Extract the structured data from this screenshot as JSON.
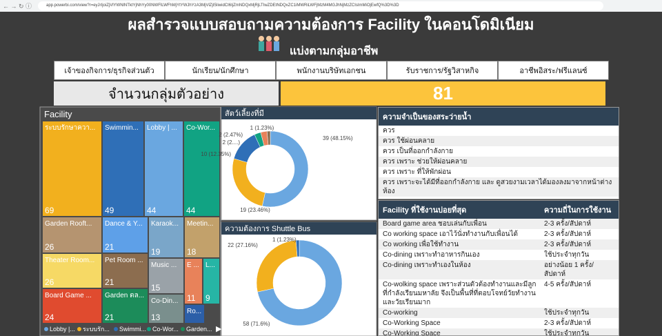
{
  "browser": {
    "url": "app.powerbi.com/view?r=eyJrIjoiZjVlYWNlNTktYjNhYy00NWFlLWFhMjYtYWJhYzA3MjVlZjI5IiwidCI6IjZmNDQxMjRjLTIwZDEtNDQxZC1iMWRiLWFjMzM4MGJhNjMzZCIsImMiOjEwfQ%3D%3D"
  },
  "header": {
    "title": "ผลสำรวจแบบสอบถามความต้องการ Facility ในคอนโดมิเนียม",
    "subtitle": "แบ่งตามกลุ่มอาชีพ"
  },
  "filters": [
    "เจ้าของกิจการ/ธุรกิจส่วนตัว",
    "นักเรียน/นักศึกษา",
    "พนักงานบริษัทเอกชน",
    "รับราชการ/รัฐวิสาหกิจ",
    "อาชีพอิสระ/ฟรีแลนซ์"
  ],
  "kpi": {
    "label": "จำนวนกลุ่มตัวอย่าง",
    "value": 81
  },
  "chart_data": [
    {
      "type": "treemap",
      "title": "Facility",
      "categories": [
        "ระบบรักษาควา...",
        "Swimmin...",
        "Lobby | ...",
        "Co-Wor...",
        "Garden Rooft...",
        "Dance & Y...",
        "Karaok...",
        "Meetin...",
        "Theater Room...",
        "Pet Room ...",
        "Music ...",
        "E ...",
        "L...",
        "Board Game ...",
        "Garden ตล...",
        "Co-Din...",
        "Ro..."
      ],
      "values": [
        69,
        49,
        44,
        44,
        26,
        21,
        19,
        18,
        26,
        21,
        15,
        11,
        9,
        24,
        21,
        13,
        null
      ],
      "colors": [
        "#f2b01e",
        "#2f6fb7",
        "#6aa7e0",
        "#11a383",
        "#b59470",
        "#5ea0e8",
        "#7aa6c9",
        "#c2a16b",
        "#f6d965",
        "#8c6d4f",
        "#9aa2a8",
        "#e8825a",
        "#26b5a5",
        "#e04b2f",
        "#1c8c5a",
        "#7a8f8d",
        "#2c5fa8"
      ],
      "legend": [
        {
          "label": "Lobby |...",
          "color": "#6aa7e0"
        },
        {
          "label": "ระบบรัก...",
          "color": "#f2b01e"
        },
        {
          "label": "Swimmi...",
          "color": "#2f6fb7"
        },
        {
          "label": "Co-Wor...",
          "color": "#11a383"
        },
        {
          "label": "Garden...",
          "color": "#1c8c5a"
        }
      ]
    },
    {
      "type": "pie",
      "title": "สัตว์เลี้ยงที่มี",
      "values": [
        39,
        19,
        10,
        2,
        2,
        1
      ],
      "value_labels": [
        "39 (48.15%)",
        "19 (23.46%)",
        "10 (12.35%)",
        "2 (2....)",
        "2 (2.47%)",
        "1 (1.23%)"
      ],
      "colors": [
        "#6aa7e0",
        "#f2b01e",
        "#2f6fb7",
        "#11a383",
        "#e8825a",
        "#8c6d4f"
      ]
    },
    {
      "type": "pie",
      "title": "ความต้องการ Shuttle Bus",
      "values": [
        58,
        22,
        1
      ],
      "value_labels": [
        "58 (71.6%)",
        "22 (27.16%)",
        "1 (1.23%)"
      ],
      "colors": [
        "#6aa7e0",
        "#f2b01e",
        "#2f6fb7"
      ]
    }
  ],
  "need_table": {
    "header": "ความจำเป็นของสระว่ายน้ำ",
    "rows": [
      "ควร",
      "ควร ใช้ผ่อนคลาย",
      "ควร เป็นที่ออกกำลังกาย",
      "ควร เพราะ ช่วยให้ผ่อนคลาย",
      "ควร เพราะ ที่ให้พักผ่อน",
      "ควร เพราะจะได้มีที่ออกกำลังกาย และ ดูสวยงามเวลาได้มองลงมาจากหน้าต่างห้อง"
    ]
  },
  "usage_table": {
    "columns": [
      "Facility ที่ใช้งานบ่อยที่สุด",
      "ความถี่ในการใช้งาน"
    ],
    "rows": [
      [
        "Board game area ชอบเล่นกับเพื่อน",
        "2-3 ครั้ง/สัปดาห์"
      ],
      [
        "Co working space เอาไว้นั่งทำงานกับเพื่อนได้",
        "2-3 ครั้ง/สัปดาห์"
      ],
      [
        "Co working เพื่อใช้ทำงาน",
        "2-3 ครั้ง/สัปดาห์"
      ],
      [
        "Co-dining เพราะทำอาหารกินเอง",
        "ใช้ประจำทุกวัน"
      ],
      [
        "Co-dining เพราะทำเองในห้อง",
        "อย่างน้อย 1 ครั้ง/สัปดาห์"
      ],
      [
        "Co-wolking space เพราะส่วนตัวต้องทำงานและมีลูกที่กำลังเรียนมหาลัย จึงเป็นพื้นที่ที่ตอบโจทย์วัยทำงานและวัยเรียนมาก",
        "4-5 ครั้ง/สัปดาห์"
      ],
      [
        "Co-working",
        "ใช้ประจำทุกวัน"
      ],
      [
        "Co-Working Space",
        "2-3 ครั้ง/สัปดาห์"
      ],
      [
        "Co-Working Space",
        "ใช้ประจำทุกวัน"
      ]
    ]
  }
}
